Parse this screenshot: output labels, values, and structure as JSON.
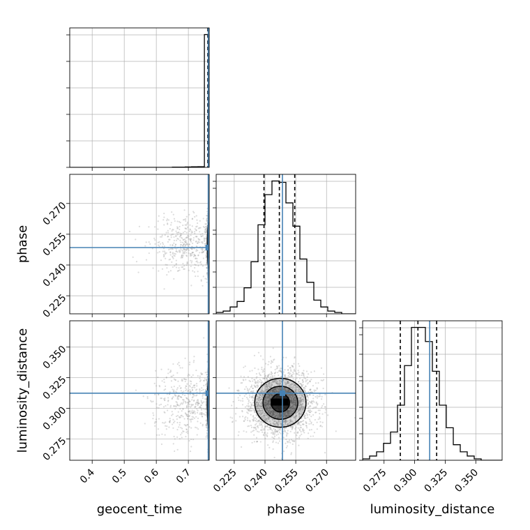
{
  "chart_data": {
    "type": "corner",
    "parameters": [
      "geocent_time",
      "phase",
      "luminosity_distance"
    ],
    "axis_labels": {
      "geocent_time": "geocent_time",
      "phase": "phase",
      "luminosity_distance": "luminosity_distance"
    },
    "ranges": {
      "geocent_time": [
        0.33,
        0.765
      ],
      "phase": [
        0.2162,
        0.2842
      ],
      "luminosity_distance": [
        0.2575,
        0.3715
      ]
    },
    "ticks": {
      "geocent_time": [
        0.4,
        0.5,
        0.6,
        0.7
      ],
      "phase": [
        0.225,
        0.24,
        0.255,
        0.27
      ],
      "luminosity_distance": [
        0.275,
        0.3,
        0.325,
        0.35
      ]
    },
    "tick_labels": {
      "geocent_time": [
        "0.4",
        "0.5",
        "0.6",
        "0.7"
      ],
      "phase": [
        "0.225",
        "0.240",
        "0.255",
        "0.270"
      ],
      "luminosity_distance": [
        "0.275",
        "0.300",
        "0.325",
        "0.350"
      ]
    },
    "truths": {
      "geocent_time": 0.762,
      "phase": 0.2485,
      "luminosity_distance": 0.3123
    },
    "quantile_lines": {
      "geocent_time": [
        0.7605,
        0.7615,
        0.7625
      ],
      "phase": [
        0.2395,
        0.247,
        0.2545
      ],
      "luminosity_distance": [
        0.2883,
        0.3027,
        0.318
      ]
    },
    "histograms": {
      "geocent_time": {
        "edges": [
          0.33,
          0.35,
          0.37,
          0.39,
          0.41,
          0.43,
          0.45,
          0.47,
          0.49,
          0.51,
          0.53,
          0.55,
          0.57,
          0.59,
          0.61,
          0.63,
          0.65,
          0.67,
          0.69,
          0.71,
          0.73,
          0.75,
          0.765
        ],
        "counts": [
          0,
          0,
          0,
          0,
          0,
          0,
          0,
          0,
          0,
          0,
          0,
          0,
          0,
          0,
          0,
          0,
          0.002,
          0.002,
          0.003,
          0.004,
          0.005,
          0.94
        ]
      },
      "phase": {
        "edges": [
          0.2162,
          0.2196,
          0.223,
          0.2264,
          0.2298,
          0.2332,
          0.2366,
          0.24,
          0.2434,
          0.2468,
          0.2502,
          0.2536,
          0.257,
          0.2604,
          0.2638,
          0.2672,
          0.2706,
          0.274,
          0.2774,
          0.2808,
          0.2842
        ],
        "counts": [
          0.01,
          0.02,
          0.05,
          0.09,
          0.19,
          0.38,
          0.65,
          0.87,
          0.97,
          0.96,
          0.81,
          0.64,
          0.4,
          0.23,
          0.1,
          0.05,
          0.02,
          0.01,
          0,
          0
        ]
      },
      "luminosity_distance": {
        "edges": [
          0.2575,
          0.2632,
          0.2689,
          0.2746,
          0.2803,
          0.286,
          0.2917,
          0.2974,
          0.3031,
          0.3088,
          0.3145,
          0.3202,
          0.3259,
          0.3316,
          0.3373,
          0.343,
          0.3487,
          0.3544,
          0.3601,
          0.3658,
          0.3715
        ],
        "counts": [
          0.01,
          0.03,
          0.06,
          0.12,
          0.2,
          0.39,
          0.67,
          0.94,
          0.94,
          0.84,
          0.63,
          0.39,
          0.23,
          0.11,
          0.06,
          0.03,
          0.01,
          0,
          0,
          0
        ]
      }
    },
    "scatter_clusters": [
      {
        "x": "geocent_time",
        "y": "phase",
        "center": [
          0.762,
          0.2495
        ],
        "sd": [
          0.0025,
          0.0065
        ],
        "n": 650
      },
      {
        "x": "geocent_time",
        "y": "phase",
        "center": [
          0.7,
          0.2495
        ],
        "sd": [
          0.055,
          0.0075
        ],
        "n": 500
      },
      {
        "x": "geocent_time",
        "y": "luminosity_distance",
        "center": [
          0.762,
          0.304
        ],
        "sd": [
          0.0025,
          0.012
        ],
        "n": 650
      },
      {
        "x": "geocent_time",
        "y": "luminosity_distance",
        "center": [
          0.7,
          0.304
        ],
        "sd": [
          0.055,
          0.014
        ],
        "n": 500
      },
      {
        "x": "phase",
        "y": "luminosity_distance",
        "center": [
          0.2475,
          0.3045
        ],
        "sd": [
          0.0085,
          0.0135
        ],
        "n": 2200
      }
    ],
    "contours": [
      {
        "x": "phase",
        "y": "luminosity_distance",
        "center": [
          0.2475,
          0.3045
        ],
        "radii": [
          [
            0.0045,
            0.0075
          ],
          [
            0.0085,
            0.0135
          ],
          [
            0.0125,
            0.02
          ]
        ]
      },
      {
        "x": "geocent_time",
        "y": "phase",
        "center": [
          0.7635,
          0.2495
        ],
        "radii": [
          [
            0.003,
            0.006
          ],
          [
            0.004,
            0.011
          ]
        ]
      },
      {
        "x": "geocent_time",
        "y": "luminosity_distance",
        "center": [
          0.7635,
          0.304
        ],
        "radii": [
          [
            0.003,
            0.01
          ],
          [
            0.004,
            0.02
          ]
        ]
      }
    ],
    "colors": {
      "truth": "#4682b4",
      "hist": "#000000",
      "scatter": "#9a9a9a",
      "grid": "#b0b0b0",
      "density": "#000000"
    },
    "grid": true
  }
}
